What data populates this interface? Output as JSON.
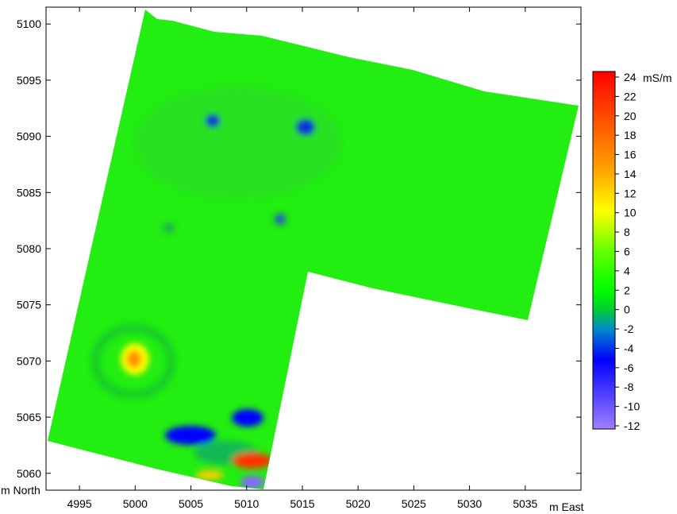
{
  "map": {
    "x_unit_label": "m East",
    "y_unit_label": "m North",
    "x_ticks": [
      "4995",
      "5000",
      "5005",
      "5010",
      "5015",
      "5020",
      "5025",
      "5030",
      "5035"
    ],
    "x_tick_values": [
      4995,
      5000,
      5005,
      5010,
      5015,
      5020,
      5025,
      5030,
      5035
    ],
    "y_ticks": [
      "5100",
      "5095",
      "5090",
      "5085",
      "5080",
      "5075",
      "5070",
      "5065",
      "5060"
    ],
    "y_tick_values": [
      5100,
      5095,
      5090,
      5085,
      5080,
      5075,
      5070,
      5065,
      5060
    ],
    "xlim": [
      4992,
      5040
    ],
    "ylim": [
      5058.5,
      5101.5
    ],
    "background_color": "#00ff00"
  },
  "colorbar": {
    "unit": "mS/m",
    "labels": [
      "24",
      "22",
      "20",
      "18",
      "16",
      "14",
      "12",
      "10",
      "8",
      "6",
      "4",
      "2",
      "0",
      "-2",
      "-4",
      "-6",
      "-8",
      "-10",
      "-12"
    ],
    "values": [
      24,
      22,
      20,
      18,
      16,
      14,
      12,
      10,
      8,
      6,
      4,
      2,
      0,
      -2,
      -4,
      -6,
      -8,
      -10,
      -12
    ],
    "stops": [
      {
        "value": 24,
        "color": "#ff0000"
      },
      {
        "value": 14,
        "color": "#ffa500"
      },
      {
        "value": 10,
        "color": "#ffff00"
      },
      {
        "value": 6,
        "color": "#66ff00"
      },
      {
        "value": 2,
        "color": "#00ff00"
      },
      {
        "value": 0,
        "color": "#00cc33"
      },
      {
        "value": -2,
        "color": "#0088cc"
      },
      {
        "value": -5,
        "color": "#0000ff"
      },
      {
        "value": -12,
        "color": "#a080ff"
      }
    ]
  },
  "anomalies": [
    {
      "label": "high",
      "x": 5000,
      "y": 5070,
      "value": 12
    },
    {
      "label": "low",
      "x": 5006.5,
      "y": 5064,
      "value": -5
    },
    {
      "label": "low",
      "x": 5010,
      "y": 5065,
      "value": -5
    },
    {
      "label": "high",
      "x": 5010,
      "y": 5061,
      "value": 20
    },
    {
      "label": "low",
      "x": 5010,
      "y": 5059,
      "value": -10
    },
    {
      "label": "low",
      "x": 5007,
      "y": 5091,
      "value": -3
    },
    {
      "label": "low",
      "x": 5015,
      "y": 5091,
      "value": -3
    },
    {
      "label": "low",
      "x": 5013,
      "y": 5082.5,
      "value": -2
    }
  ]
}
